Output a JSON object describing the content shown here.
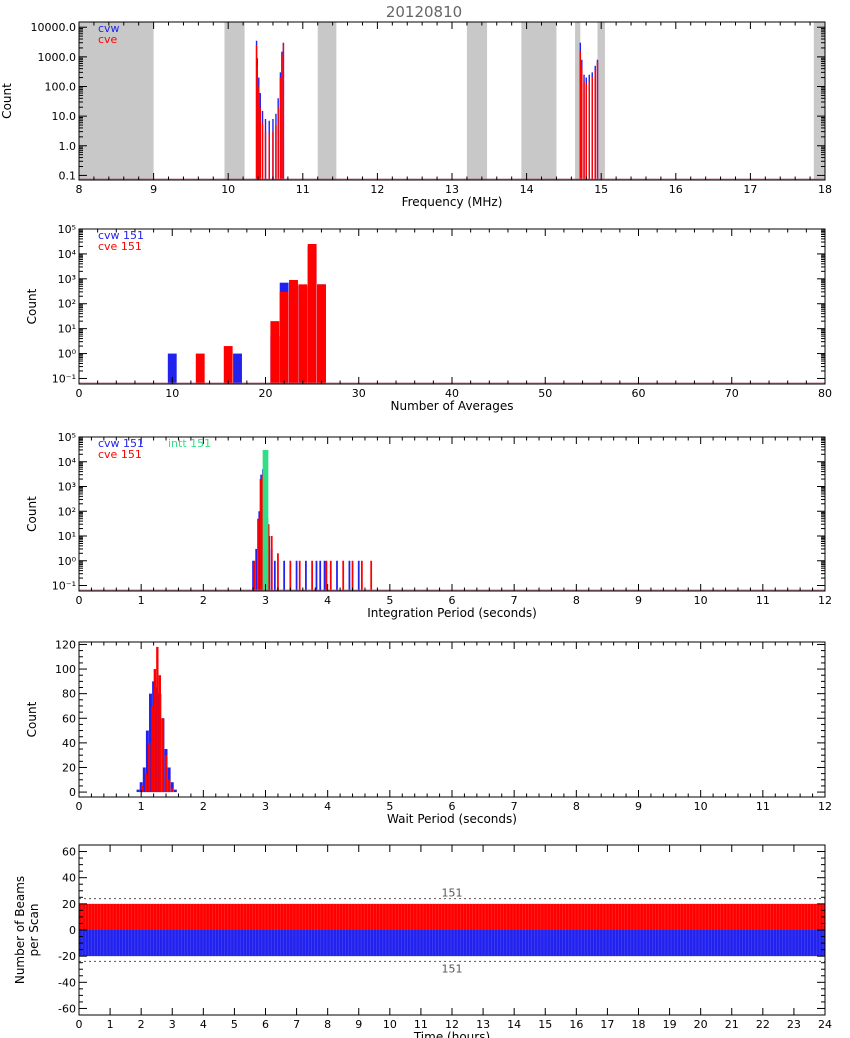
{
  "figure": {
    "title": "20120810"
  },
  "colors": {
    "cvw": "#2222ee",
    "cve": "#ff0000",
    "intt": "#33dd88",
    "shade": "#c8c8c8",
    "axis": "#000000"
  },
  "chart_data": [
    {
      "id": "freq",
      "type": "bar",
      "xlabel": "Frequency (MHz)",
      "ylabel": "Count",
      "xlim": [
        8,
        18
      ],
      "xticks": [
        8,
        9,
        10,
        11,
        12,
        13,
        14,
        15,
        16,
        17,
        18
      ],
      "ylog": true,
      "ylim": [
        0.07,
        15000
      ],
      "yticks": [
        {
          "v": 0.1,
          "label": "0.1"
        },
        {
          "v": 1,
          "label": "1.0"
        },
        {
          "v": 10,
          "label": "10.0"
        },
        {
          "v": 100,
          "label": "100.0"
        },
        {
          "v": 1000,
          "label": "1000.0"
        },
        {
          "v": 10000,
          "label": "10000.0"
        }
      ],
      "shaded_ranges": [
        [
          8.0,
          9.0
        ],
        [
          9.95,
          10.22
        ],
        [
          11.2,
          11.45
        ],
        [
          13.2,
          13.47
        ],
        [
          13.93,
          14.4
        ],
        [
          14.65,
          14.72
        ],
        [
          14.95,
          15.05
        ],
        [
          17.85,
          18.0
        ]
      ],
      "legend": [
        {
          "text": "cvw",
          "color": "cvw"
        },
        {
          "text": "cve",
          "color": "cve"
        }
      ],
      "series": [
        {
          "name": "cvw",
          "color": "cvw",
          "x": [
            10.38,
            10.39,
            10.41,
            10.43,
            10.46,
            10.5,
            10.55,
            10.6,
            10.64,
            10.67,
            10.7,
            10.72,
            10.74
          ],
          "y": [
            3500,
            900,
            200,
            60,
            15,
            8,
            7,
            8,
            12,
            40,
            300,
            1500,
            3000
          ]
        },
        {
          "name": "cve",
          "color": "cve",
          "x": [
            10.38,
            10.39,
            10.41,
            10.43,
            10.46,
            10.5,
            10.55,
            10.6,
            10.64,
            10.67,
            10.7,
            10.72,
            10.74
          ],
          "y": [
            2500,
            500,
            100,
            20,
            6,
            3,
            2.5,
            3,
            5,
            20,
            200,
            1200,
            2800
          ]
        },
        {
          "name": "cvw",
          "color": "cvw",
          "x": [
            14.72,
            14.74,
            14.77,
            14.8,
            14.84,
            14.88,
            14.92,
            14.95
          ],
          "y": [
            3000,
            800,
            250,
            200,
            250,
            300,
            500,
            800
          ]
        },
        {
          "name": "cve",
          "color": "cve",
          "x": [
            14.72,
            14.74,
            14.77,
            14.8,
            14.84,
            14.88,
            14.92,
            14.95
          ],
          "y": [
            1500,
            400,
            150,
            120,
            150,
            200,
            350,
            700
          ]
        }
      ]
    },
    {
      "id": "nave",
      "type": "bar",
      "xlabel": "Number of Averages",
      "ylabel": "Count",
      "xlim": [
        0,
        80
      ],
      "xticks": [
        0,
        10,
        20,
        30,
        40,
        50,
        60,
        70,
        80
      ],
      "ylog": true,
      "ylim": [
        0.06,
        100000
      ],
      "yticks": [
        {
          "v": 0.1,
          "label": "10⁻¹"
        },
        {
          "v": 1,
          "label": "10⁰"
        },
        {
          "v": 10,
          "label": "10¹"
        },
        {
          "v": 100,
          "label": "10²"
        },
        {
          "v": 1000,
          "label": "10³"
        },
        {
          "v": 10000,
          "label": "10⁴"
        },
        {
          "v": 100000,
          "label": "10⁵"
        }
      ],
      "legend": [
        {
          "text": "cvw 151",
          "color": "cvw"
        },
        {
          "text": "cve 151",
          "color": "cve"
        }
      ],
      "series": [
        {
          "name": "cvw",
          "color": "cvw",
          "x": [
            10,
            17,
            21,
            22,
            23,
            24,
            25,
            26
          ],
          "y": [
            1,
            1,
            5,
            700,
            800,
            500,
            20000,
            600
          ]
        },
        {
          "name": "cve",
          "color": "cve",
          "x": [
            13,
            16,
            21,
            22,
            23,
            24,
            25,
            26
          ],
          "y": [
            1,
            2,
            20,
            300,
            900,
            600,
            25000,
            600
          ]
        }
      ]
    },
    {
      "id": "intt",
      "type": "bar",
      "xlabel": "Integration Period (seconds)",
      "ylabel": "Count",
      "xlim": [
        0,
        12
      ],
      "xticks": [
        0,
        1,
        2,
        3,
        4,
        5,
        6,
        7,
        8,
        9,
        10,
        11,
        12
      ],
      "ylog": true,
      "ylim": [
        0.06,
        100000
      ],
      "yticks": [
        {
          "v": 0.1,
          "label": "10⁻¹"
        },
        {
          "v": 1,
          "label": "10⁰"
        },
        {
          "v": 10,
          "label": "10¹"
        },
        {
          "v": 100,
          "label": "10²"
        },
        {
          "v": 1000,
          "label": "10³"
        },
        {
          "v": 10000,
          "label": "10⁴"
        },
        {
          "v": 100000,
          "label": "10⁵"
        }
      ],
      "legend": [
        {
          "text": "cvw 151",
          "color": "cvw"
        },
        {
          "text": "intt 151",
          "color": "intt"
        },
        {
          "text": "cve 151",
          "color": "cve"
        }
      ],
      "series": [
        {
          "name": "cvw",
          "color": "cvw",
          "x": [
            2.8,
            2.85,
            2.9,
            2.93,
            2.96,
            3.0,
            3.03,
            3.06,
            3.1,
            3.15,
            3.3,
            3.5,
            3.65,
            3.82,
            3.88,
            3.95,
            4.15,
            4.35,
            4.5
          ],
          "y": [
            1,
            3,
            100,
            3000,
            5000,
            800,
            50,
            10,
            3,
            1,
            1,
            1,
            1,
            1,
            1,
            1,
            1,
            1,
            1
          ]
        },
        {
          "name": "cve",
          "color": "cve",
          "x": [
            2.82,
            2.88,
            2.92,
            2.95,
            2.98,
            3.02,
            3.05,
            3.1,
            3.2,
            3.4,
            3.55,
            3.75,
            3.98,
            4.05,
            4.25,
            4.4,
            4.55,
            4.7
          ],
          "y": [
            1,
            50,
            2000,
            3000,
            1000,
            100,
            30,
            10,
            2,
            1,
            1,
            1,
            1,
            1,
            1,
            1,
            1,
            1
          ]
        },
        {
          "name": "intt",
          "color": "intt",
          "x": [
            3.0
          ],
          "y": [
            30000
          ]
        }
      ]
    },
    {
      "id": "wait",
      "type": "bar",
      "xlabel": "Wait Period (seconds)",
      "ylabel": "Count",
      "xlim": [
        0,
        12
      ],
      "xticks": [
        0,
        1,
        2,
        3,
        4,
        5,
        6,
        7,
        8,
        9,
        10,
        11,
        12
      ],
      "ylog": false,
      "ylim": [
        -4,
        122
      ],
      "yticks": [
        {
          "v": 0,
          "label": "0"
        },
        {
          "v": 20,
          "label": "20"
        },
        {
          "v": 40,
          "label": "40"
        },
        {
          "v": 60,
          "label": "60"
        },
        {
          "v": 80,
          "label": "80"
        },
        {
          "v": 100,
          "label": "100"
        },
        {
          "v": 120,
          "label": "120"
        }
      ],
      "series": [
        {
          "name": "cvw",
          "color": "cvw",
          "x": [
            0.95,
            1.0,
            1.05,
            1.1,
            1.15,
            1.2,
            1.25,
            1.3,
            1.35,
            1.4,
            1.45,
            1.5,
            1.55
          ],
          "y": [
            2,
            8,
            20,
            50,
            80,
            90,
            85,
            80,
            60,
            35,
            20,
            8,
            2
          ]
        },
        {
          "name": "cve",
          "color": "cve",
          "x": [
            1.02,
            1.08,
            1.13,
            1.18,
            1.22,
            1.26,
            1.3,
            1.35,
            1.4,
            1.45,
            1.5
          ],
          "y": [
            5,
            15,
            40,
            70,
            100,
            118,
            95,
            60,
            30,
            10,
            3
          ]
        }
      ]
    },
    {
      "id": "beams",
      "type": "bar",
      "xlabel": "Time (hours)",
      "ylabel": [
        "Number of Beams",
        "per Scan"
      ],
      "xlim": [
        0,
        24
      ],
      "xticks": [
        0,
        1,
        2,
        3,
        4,
        5,
        6,
        7,
        8,
        9,
        10,
        11,
        12,
        13,
        14,
        15,
        16,
        17,
        18,
        19,
        20,
        21,
        22,
        23,
        24
      ],
      "ylog": false,
      "ylim": [
        -65,
        65
      ],
      "yticks": [
        {
          "v": -60,
          "label": "-60"
        },
        {
          "v": -40,
          "label": "-40"
        },
        {
          "v": -20,
          "label": "-20"
        },
        {
          "v": 0,
          "label": "0"
        },
        {
          "v": 20,
          "label": "20"
        },
        {
          "v": 40,
          "label": "40"
        },
        {
          "v": 60,
          "label": "60"
        }
      ],
      "band_upper": {
        "name": "cve",
        "color": "cve",
        "value": 20
      },
      "band_lower": {
        "name": "cvw",
        "color": "cvw",
        "value": -20
      },
      "reference_lines": [
        {
          "value": 24,
          "label": "151"
        },
        {
          "value": -24,
          "label": "151"
        }
      ]
    }
  ]
}
